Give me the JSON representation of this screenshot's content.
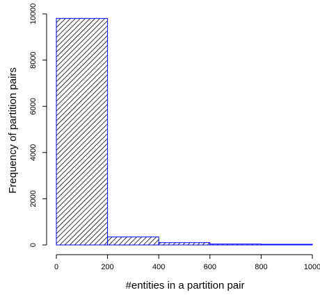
{
  "chart_data": {
    "type": "bar",
    "subtype": "histogram",
    "title": "",
    "xlabel": "#entities in a partition pair",
    "ylabel": "Frequency of partition pairs",
    "bins": [
      {
        "x0": 0,
        "x1": 200,
        "value": 9800
      },
      {
        "x0": 200,
        "x1": 400,
        "value": 350
      },
      {
        "x0": 400,
        "x1": 600,
        "value": 100
      },
      {
        "x0": 600,
        "x1": 800,
        "value": 40
      },
      {
        "x0": 800,
        "x1": 1000,
        "value": 20
      }
    ],
    "xlim": [
      0,
      1000
    ],
    "ylim": [
      0,
      10000
    ],
    "x_ticks": [
      "0",
      "200",
      "400",
      "600",
      "800",
      "1000"
    ],
    "y_ticks": [
      "0",
      "2000",
      "4000",
      "6000",
      "8000",
      "10000"
    ],
    "grid": false,
    "fill": "diagonal-hatch",
    "colors": {
      "bar_border": "#0000ff",
      "hatch": "#000000",
      "axis": "#000000"
    }
  }
}
